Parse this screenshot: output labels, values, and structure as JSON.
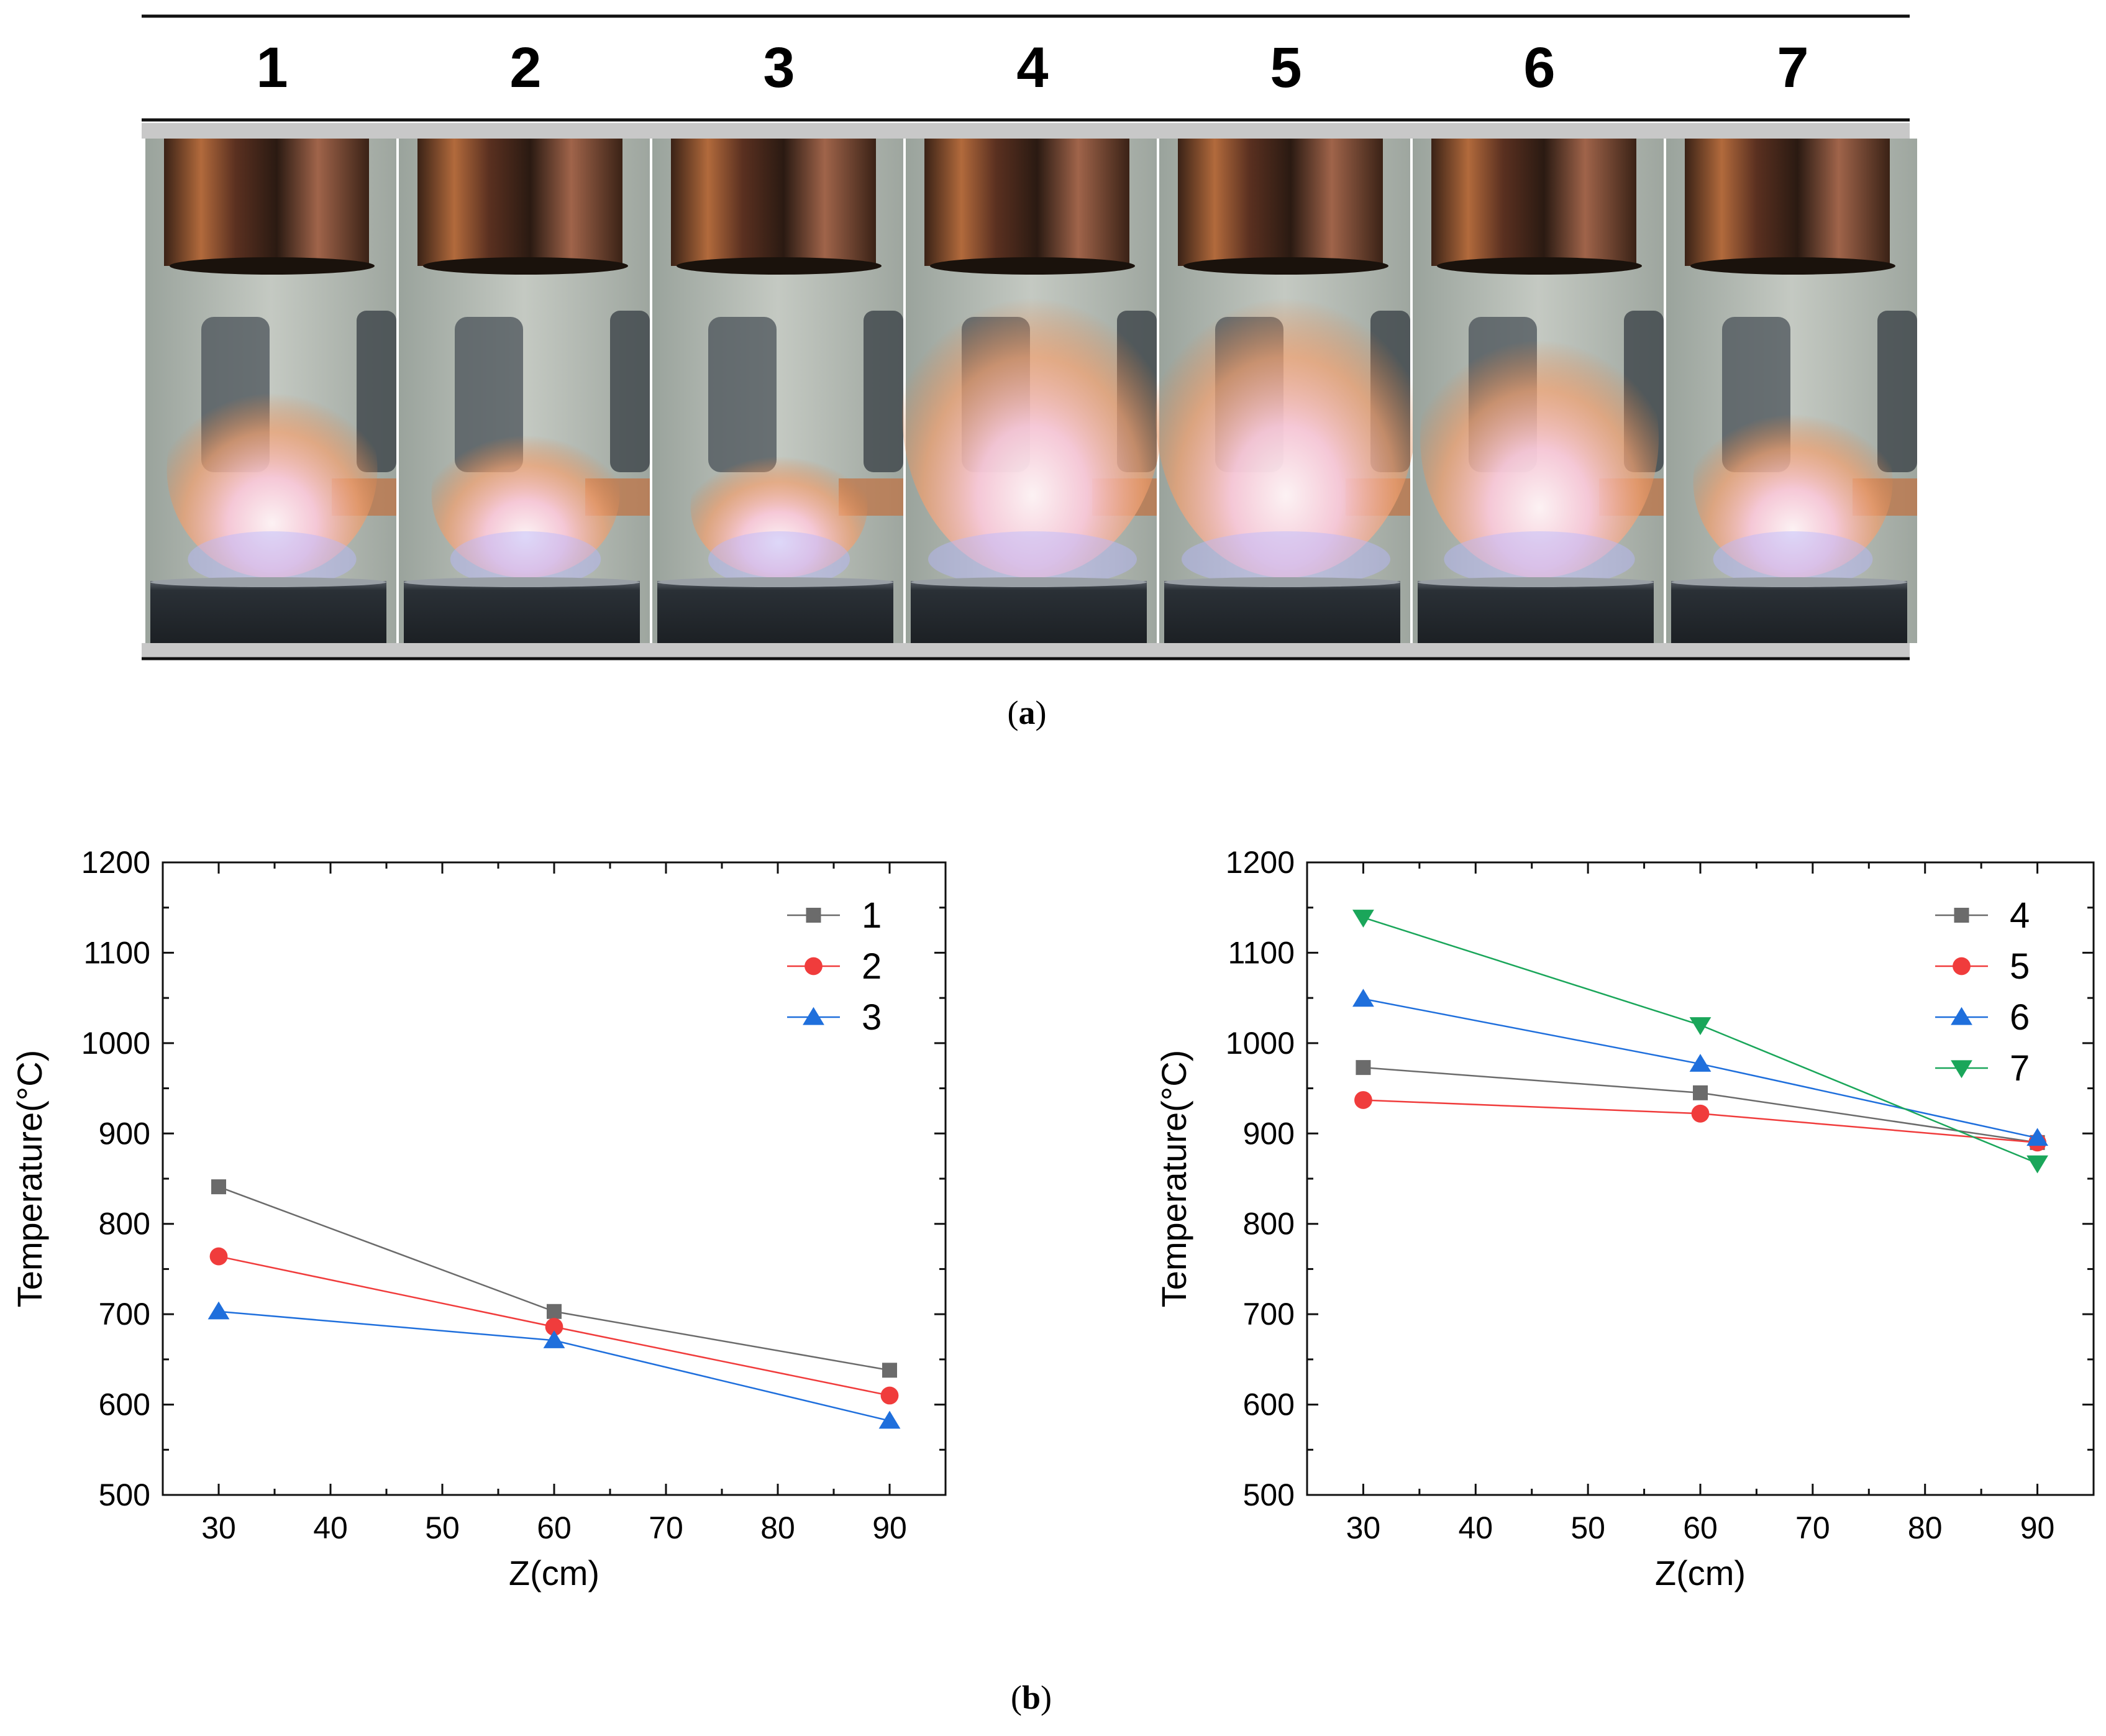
{
  "panel_a": {
    "caption_label": "a",
    "frame_labels": [
      "1",
      "2",
      "3",
      "4",
      "5",
      "6",
      "7"
    ],
    "flame_intensity": [
      0.55,
      0.35,
      0.25,
      1.0,
      1.0,
      0.8,
      0.45
    ]
  },
  "panel_b": {
    "caption_label": "b"
  },
  "chart_data": [
    {
      "type": "line",
      "xlabel": "Z(cm)",
      "ylabel": "Temperature(°C)",
      "xlim": [
        25,
        95
      ],
      "ylim": [
        500,
        1200
      ],
      "xticks": [
        30,
        40,
        50,
        60,
        70,
        80,
        90
      ],
      "yticks": [
        500,
        600,
        700,
        800,
        900,
        1000,
        1100,
        1200
      ],
      "legend_position": "top-right",
      "x": [
        30,
        60,
        90
      ],
      "series": [
        {
          "name": "1",
          "values": [
            841,
            703,
            638
          ],
          "color": "#6b6b6b",
          "marker": "square"
        },
        {
          "name": "2",
          "values": [
            764,
            686,
            610
          ],
          "color": "#f03c3c",
          "marker": "circle"
        },
        {
          "name": "3",
          "values": [
            703,
            671,
            582
          ],
          "color": "#1f6fdc",
          "marker": "triangle-up"
        }
      ]
    },
    {
      "type": "line",
      "xlabel": "Z(cm)",
      "ylabel": "Temperature(°C)",
      "xlim": [
        25,
        95
      ],
      "ylim": [
        500,
        1200
      ],
      "xticks": [
        30,
        40,
        50,
        60,
        70,
        80,
        90
      ],
      "yticks": [
        500,
        600,
        700,
        800,
        900,
        1000,
        1100,
        1200
      ],
      "legend_position": "top-right",
      "x": [
        30,
        60,
        90
      ],
      "series": [
        {
          "name": "4",
          "values": [
            973,
            945,
            890
          ],
          "color": "#6b6b6b",
          "marker": "square"
        },
        {
          "name": "5",
          "values": [
            937,
            922,
            890
          ],
          "color": "#f03c3c",
          "marker": "circle"
        },
        {
          "name": "6",
          "values": [
            1049,
            977,
            895
          ],
          "color": "#1f6fdc",
          "marker": "triangle-up"
        },
        {
          "name": "7",
          "values": [
            1139,
            1020,
            867
          ],
          "color": "#1aa65a",
          "marker": "triangle-down"
        }
      ]
    }
  ]
}
